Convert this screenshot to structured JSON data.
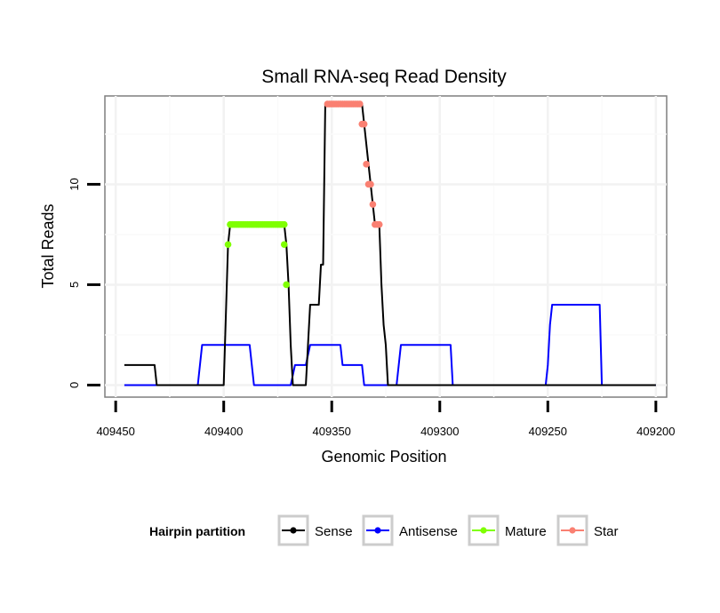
{
  "chart_data": {
    "type": "line",
    "title": "Small RNA-seq Read Density",
    "xlabel": "Genomic Position",
    "ylabel": "Total Reads",
    "xlim": [
      409455,
      409195
    ],
    "ylim": [
      -0.6,
      14.4
    ],
    "x_reversed": true,
    "x_ticks": [
      409450,
      409400,
      409350,
      409300,
      409250,
      409200
    ],
    "x_tick_labels": [
      "409450",
      "409400",
      "409350",
      "409300",
      "409250",
      "409200"
    ],
    "y_ticks": [
      0,
      5,
      10
    ],
    "y_tick_labels": [
      "0",
      "5",
      "10"
    ],
    "grid": true,
    "legend": {
      "title": "Hairpin partition",
      "position": "bottom",
      "entries": [
        {
          "label": "Sense",
          "color": "#000000"
        },
        {
          "label": "Antisense",
          "color": "#0000ff"
        },
        {
          "label": "Mature",
          "color": "#7fff00"
        },
        {
          "label": "Star",
          "color": "#fa8072"
        }
      ]
    },
    "series": [
      {
        "name": "Sense",
        "color": "#000000",
        "points": [
          [
            409446,
            1
          ],
          [
            409432,
            1
          ],
          [
            409431,
            0
          ],
          [
            409400,
            0
          ],
          [
            409398,
            7
          ],
          [
            409397,
            8
          ],
          [
            409372,
            8
          ],
          [
            409371,
            7
          ],
          [
            409370,
            5
          ],
          [
            409369,
            2
          ],
          [
            409368,
            0
          ],
          [
            409362,
            0
          ],
          [
            409361,
            2
          ],
          [
            409360,
            4
          ],
          [
            409356,
            4
          ],
          [
            409355,
            6
          ],
          [
            409354,
            6
          ],
          [
            409353,
            14
          ],
          [
            409336,
            14
          ],
          [
            409335,
            13
          ],
          [
            409334,
            12
          ],
          [
            409333,
            11
          ],
          [
            409332,
            10
          ],
          [
            409331,
            9
          ],
          [
            409330,
            8
          ],
          [
            409328,
            8
          ],
          [
            409327,
            5
          ],
          [
            409326,
            3
          ],
          [
            409325,
            2
          ],
          [
            409324,
            0
          ],
          [
            409200,
            0
          ]
        ]
      },
      {
        "name": "Antisense",
        "color": "#0000ff",
        "points": [
          [
            409446,
            0
          ],
          [
            409412,
            0
          ],
          [
            409410,
            2
          ],
          [
            409388,
            2
          ],
          [
            409386,
            0
          ],
          [
            409369,
            0
          ],
          [
            409367,
            1
          ],
          [
            409362,
            1
          ],
          [
            409360,
            2
          ],
          [
            409346,
            2
          ],
          [
            409345,
            1
          ],
          [
            409336,
            1
          ],
          [
            409335,
            0
          ],
          [
            409320,
            0
          ],
          [
            409318,
            2
          ],
          [
            409295,
            2
          ],
          [
            409294,
            0
          ],
          [
            409251,
            0
          ],
          [
            409250,
            1
          ],
          [
            409249,
            3
          ],
          [
            409248,
            4
          ],
          [
            409226,
            4
          ],
          [
            409225,
            0
          ],
          [
            409200,
            0
          ]
        ]
      },
      {
        "name": "Mature",
        "color": "#7fff00",
        "points": [
          [
            409398,
            7
          ],
          [
            409397,
            8
          ],
          [
            409396,
            8
          ],
          [
            409395,
            8
          ],
          [
            409394,
            8
          ],
          [
            409393,
            8
          ],
          [
            409392,
            8
          ],
          [
            409391,
            8
          ],
          [
            409390,
            8
          ],
          [
            409389,
            8
          ],
          [
            409388,
            8
          ],
          [
            409387,
            8
          ],
          [
            409386,
            8
          ],
          [
            409385,
            8
          ],
          [
            409384,
            8
          ],
          [
            409383,
            8
          ],
          [
            409382,
            8
          ],
          [
            409381,
            8
          ],
          [
            409380,
            8
          ],
          [
            409379,
            8
          ],
          [
            409378,
            8
          ],
          [
            409377,
            8
          ],
          [
            409376,
            8
          ],
          [
            409375,
            8
          ],
          [
            409374,
            8
          ],
          [
            409373,
            8
          ],
          [
            409372,
            8
          ],
          [
            409372,
            7
          ],
          [
            409371,
            5
          ]
        ]
      },
      {
        "name": "Star",
        "color": "#fa8072",
        "points": [
          [
            409352,
            14
          ],
          [
            409351,
            14
          ],
          [
            409350,
            14
          ],
          [
            409349,
            14
          ],
          [
            409348,
            14
          ],
          [
            409347,
            14
          ],
          [
            409346,
            14
          ],
          [
            409345,
            14
          ],
          [
            409344,
            14
          ],
          [
            409343,
            14
          ],
          [
            409342,
            14
          ],
          [
            409341,
            14
          ],
          [
            409340,
            14
          ],
          [
            409339,
            14
          ],
          [
            409338,
            14
          ],
          [
            409337,
            14
          ],
          [
            409336,
            13
          ],
          [
            409335,
            13
          ],
          [
            409334,
            11
          ],
          [
            409333,
            10
          ],
          [
            409332,
            10
          ],
          [
            409331,
            9
          ],
          [
            409330,
            8
          ],
          [
            409329,
            8
          ],
          [
            409328,
            8
          ]
        ]
      }
    ]
  }
}
